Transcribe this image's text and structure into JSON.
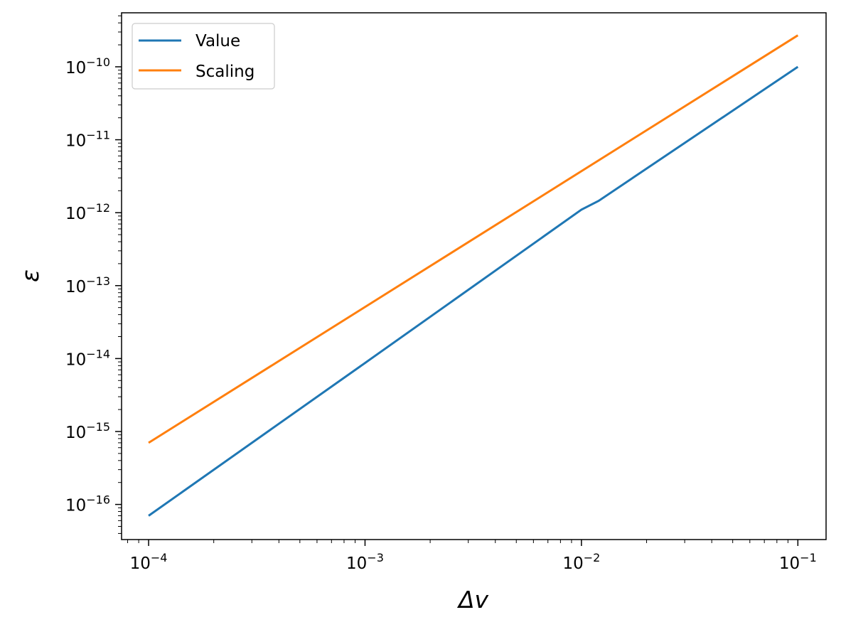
{
  "chart_data": {
    "type": "line",
    "title": "",
    "xlabel": "Δv",
    "ylabel": "ε",
    "xscale": "log",
    "yscale": "log",
    "xlim": [
      7.5e-05,
      0.135
    ],
    "ylim": [
      3.3e-17,
      5.5e-10
    ],
    "grid": false,
    "legend_position": "top-left",
    "x_ticks": [
      {
        "base": "10",
        "exp": "−4"
      },
      {
        "base": "10",
        "exp": "−3"
      },
      {
        "base": "10",
        "exp": "−2"
      },
      {
        "base": "10",
        "exp": "−1"
      }
    ],
    "y_ticks": [
      {
        "base": "10",
        "exp": "−16"
      },
      {
        "base": "10",
        "exp": "−15"
      },
      {
        "base": "10",
        "exp": "−14"
      },
      {
        "base": "10",
        "exp": "−13"
      },
      {
        "base": "10",
        "exp": "−12"
      },
      {
        "base": "10",
        "exp": "−11"
      },
      {
        "base": "10",
        "exp": "−10"
      }
    ],
    "series": [
      {
        "name": "Value",
        "color": "#1f77b4",
        "x": [
          0.0001,
          0.001,
          0.01,
          0.012,
          0.1
        ],
        "y": [
          7e-17,
          8.7e-15,
          1.1e-12,
          1.45e-12,
          1e-10
        ]
      },
      {
        "name": "Scaling",
        "color": "#ff7f0e",
        "x": [
          0.0001,
          0.1
        ],
        "y": [
          7e-16,
          2.7e-10
        ]
      }
    ]
  }
}
